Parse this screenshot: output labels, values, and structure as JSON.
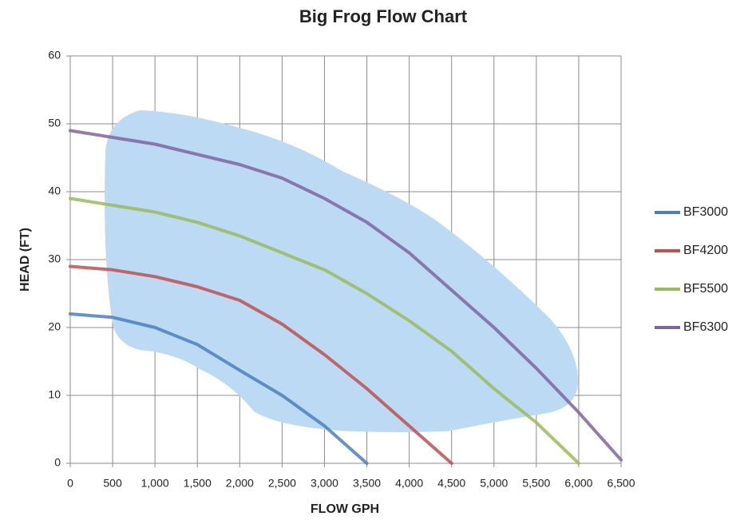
{
  "chart_data": {
    "type": "line",
    "title": "Big Frog Flow Chart",
    "x_label": "FLOW GPH",
    "y_label": "HEAD (FT)",
    "x": [
      0,
      500,
      1000,
      1500,
      2000,
      2500,
      3000,
      3500,
      4000,
      4500,
      5000,
      5500,
      6000,
      6500
    ],
    "series": [
      {
        "name": "BF3000",
        "color": "#4a7fc1",
        "values": [
          22,
          21.5,
          20,
          17.5,
          13.7,
          10,
          5.5,
          0,
          null,
          null,
          null,
          null,
          null,
          null
        ]
      },
      {
        "name": "BF4200",
        "color": "#c0504d",
        "values": [
          29,
          28.5,
          27.5,
          26,
          24,
          20.5,
          16,
          11,
          5.5,
          0,
          null,
          null,
          null,
          null
        ]
      },
      {
        "name": "BF5500",
        "color": "#9bbb59",
        "values": [
          39,
          38,
          37,
          35.5,
          33.5,
          31,
          28.5,
          25,
          21,
          16.5,
          11,
          6,
          0,
          null
        ]
      },
      {
        "name": "BF6300",
        "color": "#8064a2",
        "values": [
          49,
          48,
          47,
          45.5,
          44,
          42,
          39,
          35.5,
          31,
          25.5,
          20,
          14,
          7.5,
          0.5
        ]
      }
    ],
    "xlim": [
      0,
      6500
    ],
    "ylim": [
      0,
      60
    ],
    "xticks": [
      0,
      500,
      {
        "value": 1000,
        "label": "1,000"
      },
      {
        "value": 1500,
        "label": "1,500"
      },
      {
        "value": 2000,
        "label": "2,000"
      },
      {
        "value": 2500,
        "label": "2,500"
      },
      {
        "value": 3000,
        "label": "3,000"
      },
      {
        "value": 3500,
        "label": "3,500"
      },
      {
        "value": 4000,
        "label": "4,000"
      },
      {
        "value": 4500,
        "label": "4,500"
      },
      {
        "value": 5000,
        "label": "5,000"
      },
      {
        "value": 5500,
        "label": "5,500"
      },
      {
        "value": 6000,
        "label": "6,000"
      },
      {
        "value": 6500,
        "label": "6,500"
      }
    ],
    "yticks": [
      0,
      10,
      20,
      30,
      40,
      50,
      60
    ],
    "grid": true,
    "legend": "right"
  }
}
